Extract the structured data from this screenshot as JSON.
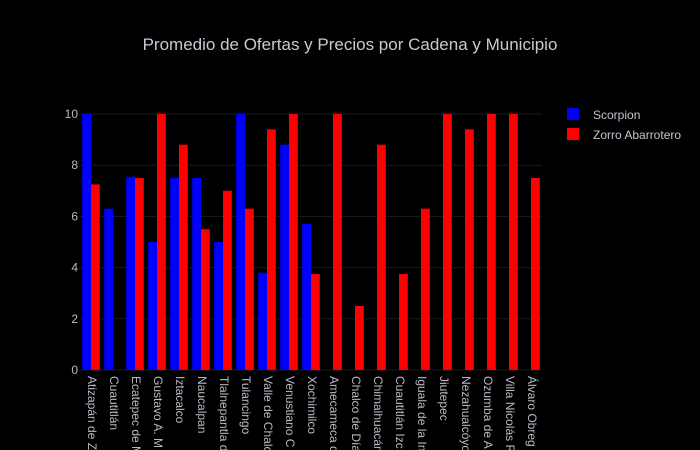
{
  "chart_data": {
    "type": "bar",
    "title": "Promedio de Ofertas y Precios por Cadena y Municipio",
    "xlabel": "",
    "ylabel": "",
    "ylim": [
      0,
      10
    ],
    "yticks": [
      0,
      2,
      4,
      6,
      8,
      10
    ],
    "grid": true,
    "legend_position": "top-right",
    "categories": [
      "Atizapán de Z",
      "Cuautitlán",
      "Ecatepec de M",
      "Gustavo A. M",
      "Iztacalco",
      "Naucalpan",
      "Tlalnepantla d",
      "Tulancingo",
      "Valle de Chalc",
      "Venustiano C",
      "Xochimilco",
      "Amecameca d",
      "Chalco de Día",
      "Chimalhuacán",
      "Cuautitlán Izc",
      "Iguala de la In",
      "Jiutepec",
      "Nezahualcóyo",
      "Ozumba de A",
      "Villa Nicolás R",
      "Álvaro Obreg"
    ],
    "series": [
      {
        "name": "Scorpion",
        "color": "#0000ff",
        "values": [
          10,
          6.3,
          7.55,
          5.0,
          7.5,
          7.5,
          5.0,
          10,
          3.8,
          8.8,
          5.7,
          null,
          null,
          null,
          null,
          null,
          null,
          null,
          null,
          null,
          null
        ]
      },
      {
        "name": "Zorro Abarrotero",
        "color": "#ff0000",
        "values": [
          7.25,
          null,
          7.5,
          10,
          8.8,
          5.5,
          7.0,
          6.3,
          9.4,
          10,
          3.75,
          10,
          2.5,
          8.8,
          3.75,
          6.3,
          10,
          9.4,
          10,
          10,
          7.5
        ]
      }
    ]
  }
}
